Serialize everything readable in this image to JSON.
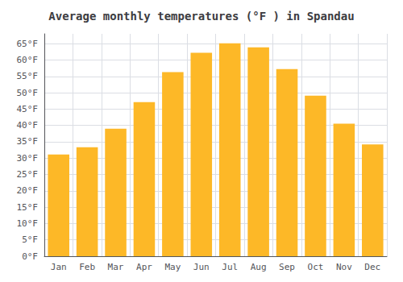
{
  "chart_data": {
    "type": "bar",
    "title": "Average monthly temperatures (°F ) in Spandau",
    "categories": [
      "Jan",
      "Feb",
      "Mar",
      "Apr",
      "May",
      "Jun",
      "Jul",
      "Aug",
      "Sep",
      "Oct",
      "Nov",
      "Dec"
    ],
    "values": [
      31.1,
      33.3,
      39.0,
      47.1,
      56.3,
      62.2,
      65.1,
      63.9,
      57.2,
      49.1,
      40.5,
      34.2
    ],
    "color": "#FDB827",
    "ylim": [
      0,
      68
    ],
    "yticks": [
      {
        "value": 0,
        "label": "0°F"
      },
      {
        "value": 5,
        "label": "5°F"
      },
      {
        "value": 10,
        "label": "10°F"
      },
      {
        "value": 15,
        "label": "15°F"
      },
      {
        "value": 20,
        "label": "20°F"
      },
      {
        "value": 25,
        "label": "25°F"
      },
      {
        "value": 30,
        "label": "30°F"
      },
      {
        "value": 35,
        "label": "35°F"
      },
      {
        "value": 40,
        "label": "40°F"
      },
      {
        "value": 45,
        "label": "45°F"
      },
      {
        "value": 50,
        "label": "50°F"
      },
      {
        "value": 55,
        "label": "55°F"
      },
      {
        "value": 60,
        "label": "60°F"
      },
      {
        "value": 65,
        "label": "65°F"
      }
    ],
    "grid": true
  }
}
